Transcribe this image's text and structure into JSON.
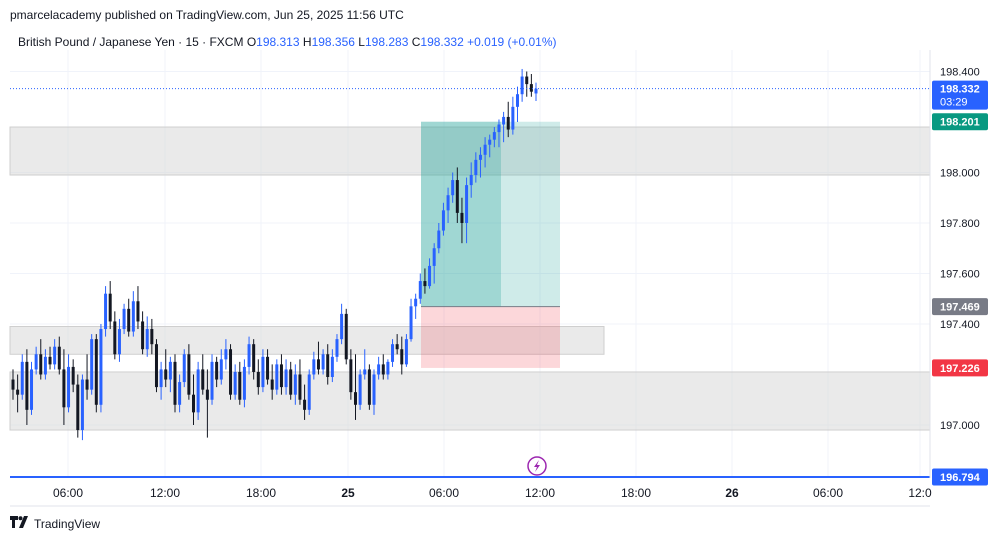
{
  "header": {
    "published": "pmarcelacademy published on TradingView.com, Jun 25, 2025 11:56 UTC"
  },
  "legend": {
    "symbol": "British Pound / Japanese Yen · 15 · FXCM",
    "o_label": "O",
    "o": "198.313",
    "h_label": "H",
    "h": "198.356",
    "l_label": "L",
    "l": "198.283",
    "c_label": "C",
    "c": "198.332",
    "change": "+0.019 (+0.01%)"
  },
  "price_axis": {
    "ticks": [
      "198.400",
      "198.000",
      "197.800",
      "197.600",
      "197.400",
      "197.000"
    ],
    "current_price": "198.332",
    "countdown": "03:29",
    "target_label": "198.201",
    "entry_label": "197.469",
    "stop_label": "197.226",
    "line_label": "196.794"
  },
  "time_axis": {
    "labels": [
      "06:00",
      "12:00",
      "18:00",
      "25",
      "06:00",
      "12:00",
      "18:00",
      "26",
      "06:00",
      "12:0"
    ]
  },
  "colors": {
    "up": "#2962ff",
    "down": "#131722",
    "target_zone": "#26a69a",
    "stop_zone": "#f23645",
    "zone_gray": "#d9d9d9",
    "hline": "#2962ff"
  },
  "footer": {
    "brand": "TradingView"
  },
  "chart_data": {
    "type": "candlestick",
    "instrument": "British Pound / Japanese Yen",
    "interval": "15",
    "ylim": [
      196.76,
      198.42
    ],
    "x_tick_labels": [
      "06:00",
      "12:00",
      "18:00",
      "25",
      "06:00",
      "12:00",
      "18:00",
      "26",
      "06:00",
      "12:0"
    ],
    "y_tick_labels": [
      "198.400",
      "198.000",
      "197.800",
      "197.600",
      "197.400",
      "197.000"
    ],
    "last_close": 198.332,
    "position": {
      "type": "long",
      "entry": 197.469,
      "target": 198.201,
      "stop": 197.226
    },
    "horizontal_line": 196.794,
    "zones": [
      {
        "from": 197.99,
        "to": 198.18
      },
      {
        "from": 197.28,
        "to": 197.39
      },
      {
        "from": 196.98,
        "to": 197.21
      }
    ],
    "candles_ohlc": [
      [
        197.18,
        197.22,
        197.1,
        197.14
      ],
      [
        197.14,
        197.2,
        197.05,
        197.12
      ],
      [
        197.12,
        197.28,
        197.1,
        197.25
      ],
      [
        197.25,
        197.3,
        197.0,
        197.06
      ],
      [
        197.06,
        197.25,
        197.04,
        197.22
      ],
      [
        197.22,
        197.31,
        197.2,
        197.28
      ],
      [
        197.28,
        197.34,
        197.18,
        197.2
      ],
      [
        197.2,
        197.3,
        197.18,
        197.27
      ],
      [
        197.27,
        197.31,
        197.22,
        197.24
      ],
      [
        197.24,
        197.34,
        197.22,
        197.31
      ],
      [
        197.31,
        197.35,
        197.2,
        197.22
      ],
      [
        197.22,
        197.3,
        197.0,
        197.07
      ],
      [
        197.07,
        197.28,
        197.05,
        197.23
      ],
      [
        197.23,
        197.26,
        197.13,
        197.16
      ],
      [
        197.16,
        197.2,
        196.95,
        196.98
      ],
      [
        196.98,
        197.2,
        196.94,
        197.18
      ],
      [
        197.18,
        197.28,
        197.1,
        197.14
      ],
      [
        197.14,
        197.36,
        197.12,
        197.34
      ],
      [
        197.34,
        197.36,
        197.05,
        197.08
      ],
      [
        197.08,
        197.4,
        197.05,
        197.38
      ],
      [
        197.38,
        197.55,
        197.35,
        197.52
      ],
      [
        197.52,
        197.57,
        197.38,
        197.41
      ],
      [
        197.41,
        197.45,
        197.26,
        197.28
      ],
      [
        197.28,
        197.42,
        197.25,
        197.38
      ],
      [
        197.38,
        197.48,
        197.36,
        197.46
      ],
      [
        197.46,
        197.5,
        197.35,
        197.37
      ],
      [
        197.37,
        197.53,
        197.35,
        197.49
      ],
      [
        197.49,
        197.55,
        197.38,
        197.41
      ],
      [
        197.41,
        197.45,
        197.28,
        197.3
      ],
      [
        197.3,
        197.43,
        197.27,
        197.38
      ],
      [
        197.38,
        197.42,
        197.28,
        197.32
      ],
      [
        197.32,
        197.34,
        197.13,
        197.15
      ],
      [
        197.15,
        197.25,
        197.1,
        197.22
      ],
      [
        197.22,
        197.3,
        197.15,
        197.18
      ],
      [
        197.18,
        197.27,
        197.13,
        197.25
      ],
      [
        197.25,
        197.28,
        197.05,
        197.08
      ],
      [
        197.08,
        197.2,
        197.05,
        197.17
      ],
      [
        197.17,
        197.3,
        197.15,
        197.28
      ],
      [
        197.28,
        197.32,
        197.1,
        197.12
      ],
      [
        197.12,
        197.2,
        197.0,
        197.05
      ],
      [
        197.05,
        197.25,
        197.02,
        197.22
      ],
      [
        197.22,
        197.28,
        197.12,
        197.14
      ],
      [
        197.14,
        197.22,
        196.95,
        197.1
      ],
      [
        197.1,
        197.28,
        197.08,
        197.25
      ],
      [
        197.25,
        197.27,
        197.15,
        197.18
      ],
      [
        197.18,
        197.3,
        197.16,
        197.26
      ],
      [
        197.26,
        197.34,
        197.22,
        197.3
      ],
      [
        197.3,
        197.32,
        197.1,
        197.12
      ],
      [
        197.12,
        197.24,
        197.1,
        197.21
      ],
      [
        197.21,
        197.25,
        197.08,
        197.1
      ],
      [
        197.1,
        197.26,
        197.07,
        197.23
      ],
      [
        197.23,
        197.35,
        197.2,
        197.32
      ],
      [
        197.32,
        197.34,
        197.18,
        197.21
      ],
      [
        197.21,
        197.26,
        197.12,
        197.15
      ],
      [
        197.15,
        197.3,
        197.13,
        197.27
      ],
      [
        197.27,
        197.3,
        197.16,
        197.18
      ],
      [
        197.18,
        197.24,
        197.1,
        197.14
      ],
      [
        197.14,
        197.26,
        197.12,
        197.24
      ],
      [
        197.24,
        197.28,
        197.12,
        197.15
      ],
      [
        197.15,
        197.26,
        197.12,
        197.22
      ],
      [
        197.22,
        197.25,
        197.1,
        197.12
      ],
      [
        197.12,
        197.24,
        197.08,
        197.2
      ],
      [
        197.2,
        197.26,
        197.08,
        197.1
      ],
      [
        197.1,
        197.16,
        197.02,
        197.06
      ],
      [
        197.06,
        197.22,
        197.04,
        197.2
      ],
      [
        197.2,
        197.29,
        197.18,
        197.26
      ],
      [
        197.26,
        197.33,
        197.2,
        197.22
      ],
      [
        197.22,
        197.3,
        197.2,
        197.28
      ],
      [
        197.28,
        197.32,
        197.16,
        197.19
      ],
      [
        197.19,
        197.3,
        197.17,
        197.27
      ],
      [
        197.27,
        197.36,
        197.25,
        197.34
      ],
      [
        197.34,
        197.48,
        197.32,
        197.44
      ],
      [
        197.44,
        197.46,
        197.24,
        197.26
      ],
      [
        197.26,
        197.3,
        197.1,
        197.13
      ],
      [
        197.13,
        197.28,
        197.02,
        197.08
      ],
      [
        197.08,
        197.22,
        197.06,
        197.2
      ],
      [
        197.2,
        197.3,
        197.18,
        197.22
      ],
      [
        197.22,
        197.24,
        197.06,
        197.08
      ],
      [
        197.08,
        197.22,
        197.04,
        197.2
      ],
      [
        197.2,
        197.27,
        197.18,
        197.24
      ],
      [
        197.24,
        197.28,
        197.18,
        197.2
      ],
      [
        197.2,
        197.26,
        197.18,
        197.25
      ],
      [
        197.25,
        197.34,
        197.23,
        197.32
      ],
      [
        197.32,
        197.36,
        197.28,
        197.3
      ],
      [
        197.3,
        197.35,
        197.2,
        197.24
      ],
      [
        197.24,
        197.36,
        197.23,
        197.34
      ],
      [
        197.34,
        197.5,
        197.33,
        197.47
      ],
      [
        197.47,
        197.52,
        197.42,
        197.5
      ],
      [
        197.5,
        197.6,
        197.48,
        197.57
      ],
      [
        197.57,
        197.62,
        197.52,
        197.55
      ],
      [
        197.55,
        197.66,
        197.54,
        197.63
      ],
      [
        197.63,
        197.72,
        197.56,
        197.7
      ],
      [
        197.7,
        197.8,
        197.68,
        197.77
      ],
      [
        197.77,
        197.88,
        197.75,
        197.85
      ],
      [
        197.85,
        197.94,
        197.8,
        197.91
      ],
      [
        197.91,
        198.0,
        197.88,
        197.97
      ],
      [
        197.97,
        198.02,
        197.8,
        197.84
      ],
      [
        197.84,
        197.9,
        197.72,
        197.8
      ],
      [
        197.8,
        197.98,
        197.72,
        197.95
      ],
      [
        197.95,
        198.04,
        197.9,
        197.99
      ],
      [
        197.99,
        198.08,
        197.96,
        198.05
      ],
      [
        198.05,
        198.1,
        197.98,
        198.07
      ],
      [
        198.07,
        198.14,
        198.02,
        198.11
      ],
      [
        198.11,
        198.15,
        198.06,
        198.13
      ],
      [
        198.13,
        198.18,
        198.1,
        198.16
      ],
      [
        198.16,
        198.21,
        198.1,
        198.19
      ],
      [
        198.19,
        198.24,
        198.12,
        198.22
      ],
      [
        198.22,
        198.28,
        198.14,
        198.17
      ],
      [
        198.17,
        198.3,
        198.15,
        198.26
      ],
      [
        198.26,
        198.34,
        198.2,
        198.31
      ],
      [
        198.31,
        198.41,
        198.28,
        198.38
      ],
      [
        198.38,
        198.4,
        198.3,
        198.35
      ],
      [
        198.35,
        198.39,
        198.3,
        198.32
      ],
      [
        198.313,
        198.356,
        198.283,
        198.332
      ]
    ]
  }
}
